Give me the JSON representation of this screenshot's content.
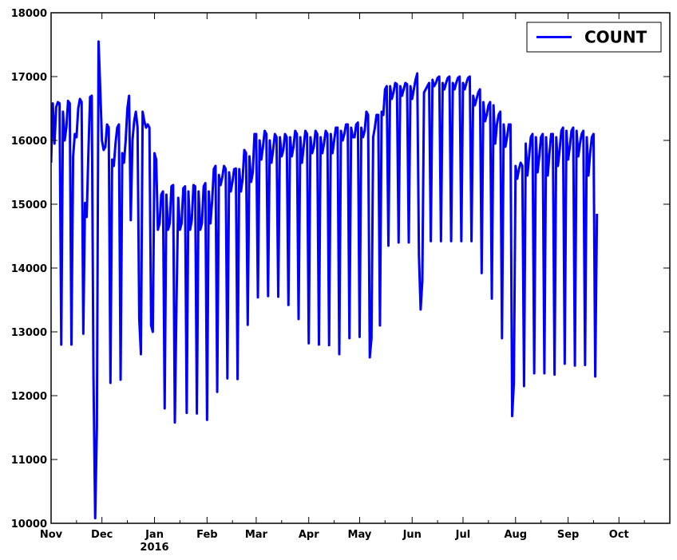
{
  "chart_data": {
    "type": "line",
    "title": "",
    "xlabel": "",
    "ylabel": "",
    "ylim": [
      10000,
      18000
    ],
    "xlim": [
      "2015-11-01",
      "2016-10-31"
    ],
    "grid": false,
    "legend": {
      "position": "top-right",
      "entries": [
        "COUNT"
      ]
    },
    "y_ticks": [
      "10000",
      "11000",
      "12000",
      "13000",
      "14000",
      "15000",
      "16000",
      "17000",
      "18000"
    ],
    "x_ticks": [
      {
        "date": "2015-11-01",
        "label": "Nov"
      },
      {
        "date": "2015-12-01",
        "label": "Dec"
      },
      {
        "date": "2016-01-01",
        "label": "Jan",
        "sublabel": "2016"
      },
      {
        "date": "2016-02-01",
        "label": "Feb"
      },
      {
        "date": "2016-03-01",
        "label": "Mar"
      },
      {
        "date": "2016-04-01",
        "label": "Apr"
      },
      {
        "date": "2016-05-01",
        "label": "May"
      },
      {
        "date": "2016-06-01",
        "label": "Jun"
      },
      {
        "date": "2016-07-01",
        "label": "Jul"
      },
      {
        "date": "2016-08-01",
        "label": "Aug"
      },
      {
        "date": "2016-09-01",
        "label": "Sep"
      },
      {
        "date": "2016-10-01",
        "label": "Oct"
      }
    ],
    "series": [
      {
        "name": "COUNT",
        "color": "#0000ff",
        "start": "2015-11-01",
        "step": "1 day",
        "values": [
          15650,
          16580,
          15950,
          16520,
          16600,
          16580,
          12800,
          16450,
          16000,
          16200,
          16620,
          16580,
          12800,
          15750,
          16100,
          16050,
          16500,
          16650,
          16600,
          12970,
          15020,
          14800,
          15800,
          16680,
          16700,
          12300,
          10080,
          11500,
          17550,
          16800,
          16000,
          15850,
          15900,
          16250,
          16200,
          12200,
          15700,
          15600,
          15950,
          16200,
          16250,
          12250,
          15800,
          15650,
          16000,
          16500,
          16700,
          14750,
          16000,
          16300,
          16450,
          16200,
          13200,
          12650,
          16450,
          16300,
          16200,
          16250,
          16200,
          13100,
          13000,
          15800,
          15700,
          14600,
          14700,
          15150,
          15200,
          11800,
          15150,
          14600,
          14700,
          15280,
          15300,
          11580,
          13500,
          15100,
          14600,
          14700,
          15250,
          15280,
          11730,
          15200,
          14600,
          14750,
          15300,
          15280,
          11720,
          15200,
          14600,
          14700,
          15280,
          15330,
          11620,
          15200,
          14700,
          15050,
          15550,
          15600,
          12060,
          15460,
          15300,
          15420,
          15600,
          15550,
          12270,
          15500,
          15200,
          15350,
          15550,
          15560,
          12260,
          15550,
          15200,
          15400,
          15850,
          15800,
          13110,
          15750,
          15350,
          15500,
          16100,
          16100,
          13540,
          16000,
          15700,
          15900,
          16150,
          16100,
          13560,
          16000,
          15650,
          15850,
          16100,
          16050,
          13550,
          16050,
          15750,
          15850,
          16100,
          16050,
          13420,
          16050,
          15750,
          15900,
          16150,
          16100,
          13200,
          16050,
          15650,
          15900,
          16150,
          16100,
          12820,
          16050,
          15800,
          15900,
          16150,
          16100,
          12800,
          16050,
          15800,
          15950,
          16150,
          16100,
          12790,
          16100,
          15800,
          16000,
          16200,
          16200,
          12650,
          16150,
          16000,
          16100,
          16250,
          16250,
          12900,
          16200,
          16050,
          16050,
          16250,
          16280,
          12920,
          16200,
          16050,
          16150,
          16450,
          16400,
          12600,
          12900,
          16050,
          16200,
          16400,
          16400,
          13100,
          16450,
          16400,
          16800,
          16850,
          14350,
          16850,
          16650,
          16750,
          16900,
          16880,
          14400,
          16850,
          16700,
          16800,
          16900,
          16880,
          14400,
          16850,
          16650,
          16800,
          16950,
          17050,
          14200,
          13350,
          13800,
          16750,
          16800,
          16850,
          16900,
          14420,
          16950,
          16850,
          16900,
          16980,
          17000,
          14420,
          16900,
          16800,
          16900,
          16980,
          17000,
          14420,
          16900,
          16800,
          16900,
          16980,
          17000,
          14420,
          16900,
          16800,
          16900,
          16980,
          17000,
          14420,
          16700,
          16550,
          16650,
          16750,
          16800,
          13920,
          16600,
          16300,
          16400,
          16550,
          16600,
          13520,
          16550,
          15950,
          16250,
          16400,
          16450,
          12900,
          16250,
          15900,
          16050,
          16250,
          16250,
          11680,
          12200,
          15600,
          15400,
          15550,
          15650,
          15600,
          12150,
          15950,
          15450,
          15750,
          16050,
          16100,
          12350,
          16050,
          15500,
          15750,
          16050,
          16100,
          12350,
          16050,
          15450,
          15800,
          16100,
          16100,
          12330,
          16050,
          15600,
          15850,
          16150,
          16200,
          12500,
          16150,
          15700,
          15900,
          16150,
          16200,
          12470,
          16150,
          15750,
          15950,
          16100,
          16150,
          12480,
          16050,
          15450,
          15800,
          16050,
          16100,
          12300,
          14850
        ]
      }
    ]
  }
}
